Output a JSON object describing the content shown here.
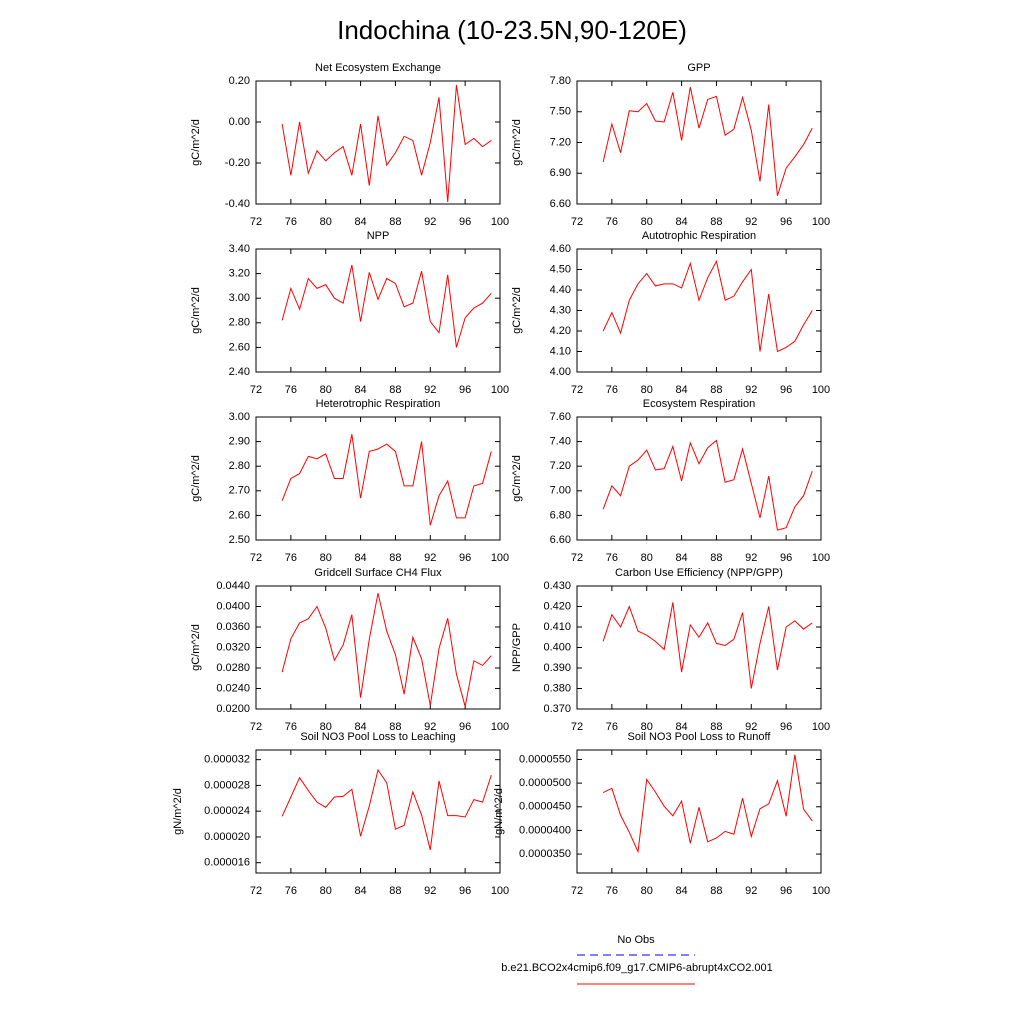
{
  "title": "Indochina (10-23.5N,90-120E)",
  "legend": [
    {
      "label": "No Obs",
      "color": "#0000ff",
      "dashed": true
    },
    {
      "label": "b.e21.BCO2x4cmip6.f09_g17.CMIP6-abrupt4xCO2.001",
      "color": "#ff0000",
      "dashed": false
    }
  ],
  "chart_data": [
    {
      "type": "line",
      "title": "Net Ecosystem Exchange",
      "y_label": "gC/m^2/d",
      "color": "#ff0000",
      "x": [
        75,
        76,
        77,
        78,
        79,
        80,
        81,
        82,
        83,
        84,
        85,
        86,
        87,
        88,
        89,
        90,
        91,
        92,
        93,
        94,
        95,
        96,
        97,
        98,
        99
      ],
      "values": [
        -0.01,
        -0.26,
        0.0,
        -0.25,
        -0.14,
        -0.19,
        -0.15,
        -0.12,
        -0.26,
        -0.01,
        -0.31,
        0.03,
        -0.21,
        -0.15,
        -0.07,
        -0.09,
        -0.26,
        -0.1,
        0.12,
        -0.39,
        0.18,
        -0.11,
        -0.08,
        -0.12,
        -0.09
      ],
      "xlim": [
        72,
        100
      ],
      "xticks": [
        72,
        76,
        80,
        84,
        88,
        92,
        96,
        100
      ],
      "ylim": [
        -0.4,
        0.2
      ],
      "yticks": [
        {
          "value": -0.4,
          "label": "-0.40"
        },
        {
          "value": -0.2,
          "label": "-0.20"
        },
        {
          "value": 0,
          "label": "0.00"
        },
        {
          "value": 0.2,
          "label": "0.20"
        }
      ]
    },
    {
      "type": "line",
      "title": "GPP",
      "y_label": "gC/m^2/d",
      "color": "#ff0000",
      "x": [
        75,
        76,
        77,
        78,
        79,
        80,
        81,
        82,
        83,
        84,
        85,
        86,
        87,
        88,
        89,
        90,
        91,
        92,
        93,
        94,
        95,
        96,
        97,
        98,
        99
      ],
      "values": [
        7.01,
        7.38,
        7.1,
        7.51,
        7.5,
        7.58,
        7.41,
        7.4,
        7.69,
        7.22,
        7.74,
        7.34,
        7.62,
        7.65,
        7.27,
        7.33,
        7.64,
        7.32,
        6.82,
        7.57,
        6.68,
        6.95,
        7.06,
        7.18,
        7.34
      ],
      "xlim": [
        72,
        100
      ],
      "xticks": [
        72,
        76,
        80,
        84,
        88,
        92,
        96,
        100
      ],
      "ylim": [
        6.6,
        7.8
      ],
      "yticks": [
        {
          "value": 6.6,
          "label": "6.60"
        },
        {
          "value": 6.9,
          "label": "6.90"
        },
        {
          "value": 7.2,
          "label": "7.20"
        },
        {
          "value": 7.5,
          "label": "7.50"
        },
        {
          "value": 7.8,
          "label": "7.80"
        }
      ]
    },
    {
      "type": "line",
      "title": "NPP",
      "y_label": "gC/m^2/d",
      "color": "#ff0000",
      "x": [
        75,
        76,
        77,
        78,
        79,
        80,
        81,
        82,
        83,
        84,
        85,
        86,
        87,
        88,
        89,
        90,
        91,
        92,
        93,
        94,
        95,
        96,
        97,
        98,
        99
      ],
      "values": [
        2.82,
        3.08,
        2.91,
        3.16,
        3.08,
        3.11,
        3.0,
        2.96,
        3.27,
        2.81,
        3.21,
        2.99,
        3.16,
        3.12,
        2.93,
        2.96,
        3.22,
        2.81,
        2.72,
        3.19,
        2.6,
        2.84,
        2.92,
        2.96,
        3.04
      ],
      "xlim": [
        72,
        100
      ],
      "xticks": [
        72,
        76,
        80,
        84,
        88,
        92,
        96,
        100
      ],
      "ylim": [
        2.4,
        3.4
      ],
      "yticks": [
        {
          "value": 2.4,
          "label": "2.40"
        },
        {
          "value": 2.6,
          "label": "2.60"
        },
        {
          "value": 2.8,
          "label": "2.80"
        },
        {
          "value": 3.0,
          "label": "3.00"
        },
        {
          "value": 3.2,
          "label": "3.20"
        },
        {
          "value": 3.4,
          "label": "3.40"
        }
      ]
    },
    {
      "type": "line",
      "title": "Autotrophic Respiration",
      "y_label": "gC/m^2/d",
      "color": "#ff0000",
      "x": [
        75,
        76,
        77,
        78,
        79,
        80,
        81,
        82,
        83,
        84,
        85,
        86,
        87,
        88,
        89,
        90,
        91,
        92,
        93,
        94,
        95,
        96,
        97,
        98,
        99
      ],
      "values": [
        4.2,
        4.29,
        4.19,
        4.35,
        4.43,
        4.48,
        4.42,
        4.43,
        4.43,
        4.41,
        4.53,
        4.35,
        4.46,
        4.54,
        4.35,
        4.37,
        4.44,
        4.5,
        4.1,
        4.38,
        4.1,
        4.12,
        4.15,
        4.23,
        4.3
      ],
      "xlim": [
        72,
        100
      ],
      "xticks": [
        72,
        76,
        80,
        84,
        88,
        92,
        96,
        100
      ],
      "ylim": [
        4.0,
        4.6
      ],
      "yticks": [
        {
          "value": 4.0,
          "label": "4.00"
        },
        {
          "value": 4.1,
          "label": "4.10"
        },
        {
          "value": 4.2,
          "label": "4.20"
        },
        {
          "value": 4.3,
          "label": "4.30"
        },
        {
          "value": 4.4,
          "label": "4.40"
        },
        {
          "value": 4.5,
          "label": "4.50"
        },
        {
          "value": 4.6,
          "label": "4.60"
        }
      ]
    },
    {
      "type": "line",
      "title": "Heterotrophic Respiration",
      "y_label": "gC/m^2/d",
      "color": "#ff0000",
      "x": [
        75,
        76,
        77,
        78,
        79,
        80,
        81,
        82,
        83,
        84,
        85,
        86,
        87,
        88,
        89,
        90,
        91,
        92,
        93,
        94,
        95,
        96,
        97,
        98,
        99
      ],
      "values": [
        2.66,
        2.75,
        2.77,
        2.84,
        2.83,
        2.85,
        2.75,
        2.75,
        2.93,
        2.67,
        2.86,
        2.87,
        2.89,
        2.86,
        2.72,
        2.72,
        2.9,
        2.56,
        2.68,
        2.74,
        2.59,
        2.59,
        2.72,
        2.73,
        2.86
      ],
      "xlim": [
        72,
        100
      ],
      "xticks": [
        72,
        76,
        80,
        84,
        88,
        92,
        96,
        100
      ],
      "ylim": [
        2.5,
        3.0
      ],
      "yticks": [
        {
          "value": 2.5,
          "label": "2.50"
        },
        {
          "value": 2.6,
          "label": "2.60"
        },
        {
          "value": 2.7,
          "label": "2.70"
        },
        {
          "value": 2.8,
          "label": "2.80"
        },
        {
          "value": 2.9,
          "label": "2.90"
        },
        {
          "value": 3.0,
          "label": "3.00"
        }
      ]
    },
    {
      "type": "line",
      "title": "Ecosystem Respiration",
      "y_label": "gC/m^2/d",
      "color": "#ff0000",
      "x": [
        75,
        76,
        77,
        78,
        79,
        80,
        81,
        82,
        83,
        84,
        85,
        86,
        87,
        88,
        89,
        90,
        91,
        92,
        93,
        94,
        95,
        96,
        97,
        98,
        99
      ],
      "values": [
        6.85,
        7.04,
        6.96,
        7.2,
        7.25,
        7.33,
        7.17,
        7.18,
        7.36,
        7.08,
        7.39,
        7.22,
        7.35,
        7.41,
        7.07,
        7.09,
        7.34,
        7.06,
        6.78,
        7.12,
        6.68,
        6.7,
        6.87,
        6.96,
        7.16
      ],
      "xlim": [
        72,
        100
      ],
      "xticks": [
        72,
        76,
        80,
        84,
        88,
        92,
        96,
        100
      ],
      "ylim": [
        6.6,
        7.6
      ],
      "yticks": [
        {
          "value": 6.6,
          "label": "6.60"
        },
        {
          "value": 6.8,
          "label": "6.80"
        },
        {
          "value": 7.0,
          "label": "7.00"
        },
        {
          "value": 7.2,
          "label": "7.20"
        },
        {
          "value": 7.4,
          "label": "7.40"
        },
        {
          "value": 7.6,
          "label": "7.60"
        }
      ]
    },
    {
      "type": "line",
      "title": "Gridcell Surface CH4 Flux",
      "y_label": "gC/m^2/d",
      "color": "#ff0000",
      "x": [
        75,
        76,
        77,
        78,
        79,
        80,
        81,
        82,
        83,
        84,
        85,
        86,
        87,
        88,
        89,
        90,
        91,
        92,
        93,
        94,
        95,
        96,
        97,
        98,
        99
      ],
      "values": [
        0.0272,
        0.0337,
        0.0368,
        0.0376,
        0.04,
        0.0358,
        0.0295,
        0.0325,
        0.0384,
        0.0222,
        0.0336,
        0.0426,
        0.0352,
        0.0306,
        0.0229,
        0.034,
        0.0298,
        0.0207,
        0.0318,
        0.0377,
        0.0268,
        0.0205,
        0.0294,
        0.0285,
        0.0304
      ],
      "xlim": [
        72,
        100
      ],
      "xticks": [
        72,
        76,
        80,
        84,
        88,
        92,
        96,
        100
      ],
      "ylim": [
        0.02,
        0.044
      ],
      "yticks": [
        {
          "value": 0.02,
          "label": "0.0200"
        },
        {
          "value": 0.024,
          "label": "0.0240"
        },
        {
          "value": 0.028,
          "label": "0.0280"
        },
        {
          "value": 0.032,
          "label": "0.0320"
        },
        {
          "value": 0.036,
          "label": "0.0360"
        },
        {
          "value": 0.04,
          "label": "0.0400"
        },
        {
          "value": 0.044,
          "label": "0.0440"
        }
      ]
    },
    {
      "type": "line",
      "title": "Carbon Use Efficiency (NPP/GPP)",
      "y_label": "NPP/GPP",
      "color": "#ff0000",
      "x": [
        75,
        76,
        77,
        78,
        79,
        80,
        81,
        82,
        83,
        84,
        85,
        86,
        87,
        88,
        89,
        90,
        91,
        92,
        93,
        94,
        95,
        96,
        97,
        98,
        99
      ],
      "values": [
        0.403,
        0.416,
        0.41,
        0.42,
        0.408,
        0.406,
        0.403,
        0.399,
        0.422,
        0.388,
        0.411,
        0.405,
        0.412,
        0.402,
        0.401,
        0.404,
        0.417,
        0.38,
        0.402,
        0.42,
        0.389,
        0.41,
        0.413,
        0.409,
        0.412
      ],
      "xlim": [
        72,
        100
      ],
      "xticks": [
        72,
        76,
        80,
        84,
        88,
        92,
        96,
        100
      ],
      "ylim": [
        0.37,
        0.43
      ],
      "yticks": [
        {
          "value": 0.37,
          "label": "0.370"
        },
        {
          "value": 0.38,
          "label": "0.380"
        },
        {
          "value": 0.39,
          "label": "0.390"
        },
        {
          "value": 0.4,
          "label": "0.400"
        },
        {
          "value": 0.41,
          "label": "0.410"
        },
        {
          "value": 0.42,
          "label": "0.420"
        },
        {
          "value": 0.43,
          "label": "0.430"
        }
      ]
    },
    {
      "type": "line",
      "title": "Soil NO3 Pool Loss to Leaching",
      "y_label": "gN/m^2/d",
      "color": "#ff0000",
      "x": [
        75,
        76,
        77,
        78,
        79,
        80,
        81,
        82,
        83,
        84,
        85,
        86,
        87,
        88,
        89,
        90,
        91,
        92,
        93,
        94,
        95,
        96,
        97,
        98,
        99
      ],
      "values": [
        2.32e-05,
        2.62e-05,
        2.92e-05,
        2.72e-05,
        2.54e-05,
        2.46e-05,
        2.62e-05,
        2.63e-05,
        2.74e-05,
        2.01e-05,
        2.48e-05,
        3.04e-05,
        2.84e-05,
        2.12e-05,
        2.18e-05,
        2.7e-05,
        2.34e-05,
        1.8e-05,
        2.87e-05,
        2.33e-05,
        2.33e-05,
        2.31e-05,
        2.58e-05,
        2.54e-05,
        2.96e-05
      ],
      "xlim": [
        72,
        100
      ],
      "xticks": [
        72,
        76,
        80,
        84,
        88,
        92,
        96,
        100
      ],
      "ylim": [
        1.44e-05,
        3.35e-05
      ],
      "yticks": [
        {
          "value": 1.6e-05,
          "label": "0.000016"
        },
        {
          "value": 2e-05,
          "label": "0.000020"
        },
        {
          "value": 2.4e-05,
          "label": "0.000024"
        },
        {
          "value": 2.8e-05,
          "label": "0.000028"
        },
        {
          "value": 3.2e-05,
          "label": "0.000032"
        }
      ]
    },
    {
      "type": "line",
      "title": "Soil NO3 Pool Loss to Runoff",
      "y_label": "gN/m^2/d",
      "color": "#ff0000",
      "x": [
        75,
        76,
        77,
        78,
        79,
        80,
        81,
        82,
        83,
        84,
        85,
        86,
        87,
        88,
        89,
        90,
        91,
        92,
        93,
        94,
        95,
        96,
        97,
        98,
        99
      ],
      "values": [
        4.8e-05,
        4.89e-05,
        4.32e-05,
        3.96e-05,
        3.55e-05,
        5.08e-05,
        4.81e-05,
        4.51e-05,
        4.31e-05,
        4.62e-05,
        3.73e-05,
        4.49e-05,
        3.76e-05,
        3.84e-05,
        3.98e-05,
        3.92e-05,
        4.68e-05,
        3.87e-05,
        4.46e-05,
        4.56e-05,
        5.05e-05,
        4.3e-05,
        5.6e-05,
        4.45e-05,
        4.2e-05
      ],
      "xlim": [
        72,
        100
      ],
      "xticks": [
        72,
        76,
        80,
        84,
        88,
        92,
        96,
        100
      ],
      "ylim": [
        3.1e-05,
        5.7e-05
      ],
      "yticks": [
        {
          "value": 3.5e-05,
          "label": "0.0000350"
        },
        {
          "value": 4e-05,
          "label": "0.0000400"
        },
        {
          "value": 4.5e-05,
          "label": "0.0000450"
        },
        {
          "value": 5e-05,
          "label": "0.0000500"
        },
        {
          "value": 5.5e-05,
          "label": "0.0000550"
        }
      ]
    }
  ]
}
